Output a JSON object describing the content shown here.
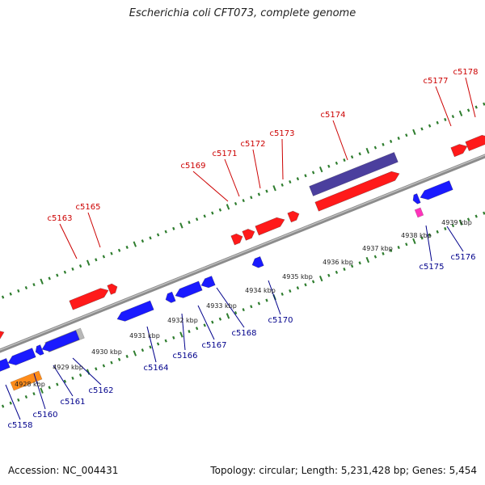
{
  "title": "Escherichia coli CFT073, complete genome",
  "footer": {
    "accession": "Accession: NC_004431",
    "summary": "Topology: circular; Length: 5,231,428 bp; Genes: 5,454"
  },
  "colors": {
    "backbone": "#8c8c8c",
    "tick": "#2e7d2e",
    "forward_gene": "#ff1a1a",
    "reverse_gene": "#1a1aff",
    "forward_label": "#cc0000",
    "reverse_label": "#00008b",
    "purple_feature": "#4b3f9e",
    "orange_feature": "#ff8c1a",
    "grey_feature": "#b8b8b8",
    "magenta_feature": "#ff33bb"
  },
  "scale_labels": [
    "4928 kbp",
    "4929 kbp",
    "4930 kbp",
    "4931 kbp",
    "4932 kbp",
    "4933 kbp",
    "4934 kbp",
    "4935 kbp",
    "4936 kbp",
    "4937 kbp",
    "4938 kbp",
    "4939 kbp"
  ],
  "forward_genes": [
    "c5163",
    "c5165",
    "c5169",
    "c5171",
    "c5172",
    "c5173",
    "c5174",
    "c5177",
    "c5178"
  ],
  "reverse_genes": [
    "c5158",
    "c5160",
    "c5161",
    "c5162",
    "c5164",
    "c5166",
    "c5167",
    "c5168",
    "c5170",
    "c5175",
    "c5176"
  ]
}
